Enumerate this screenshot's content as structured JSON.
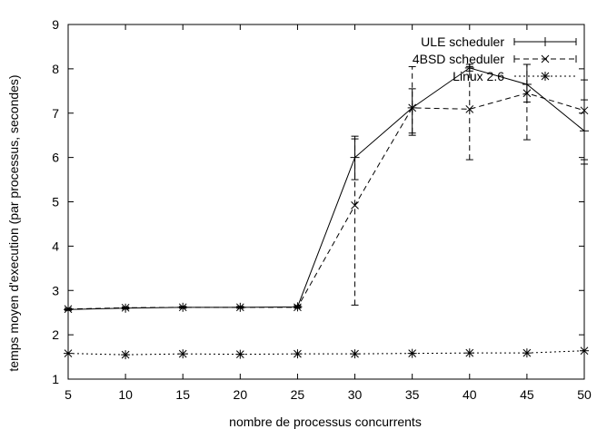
{
  "chart_data": {
    "type": "line",
    "xlabel": "nombre de processus concurrents",
    "ylabel": "temps moyen d'execution (par processus, secondes)",
    "xlim": [
      5,
      50
    ],
    "ylim": [
      1,
      9
    ],
    "xticks": [
      5,
      10,
      15,
      20,
      25,
      30,
      35,
      40,
      45,
      50
    ],
    "yticks": [
      1,
      2,
      3,
      4,
      5,
      6,
      7,
      8,
      9
    ],
    "grid": false,
    "legend_position": "top-right",
    "x": [
      5,
      10,
      15,
      20,
      25,
      30,
      35,
      40,
      45,
      50
    ],
    "series": [
      {
        "name": "ULE scheduler",
        "style": "solid",
        "marker": "plus",
        "values": [
          2.57,
          2.6,
          2.62,
          2.62,
          2.63,
          6.0,
          7.12,
          8.02,
          7.65,
          6.6
        ],
        "errors": [
          [
            2.55,
            2.59
          ],
          [
            2.58,
            2.62
          ],
          [
            2.6,
            2.64
          ],
          [
            2.6,
            2.64
          ],
          [
            2.61,
            2.66
          ],
          [
            5.5,
            6.48
          ],
          [
            6.5,
            7.55
          ],
          [
            7.95,
            8.1
          ],
          [
            7.25,
            8.1
          ],
          [
            5.95,
            7.75
          ]
        ]
      },
      {
        "name": "4BSD scheduler",
        "style": "dashed",
        "marker": "x",
        "values": [
          2.58,
          2.61,
          2.62,
          2.62,
          2.62,
          4.92,
          7.12,
          7.09,
          7.45,
          7.06
        ],
        "errors": [
          [
            2.56,
            2.6
          ],
          [
            2.59,
            2.63
          ],
          [
            2.6,
            2.64
          ],
          [
            2.6,
            2.64
          ],
          [
            2.6,
            2.64
          ],
          [
            2.67,
            6.42
          ],
          [
            6.55,
            8.05
          ],
          [
            5.95,
            8.05
          ],
          [
            6.4,
            8.1
          ],
          [
            5.85,
            7.3
          ]
        ]
      },
      {
        "name": "Linux 2.6",
        "style": "dotted",
        "marker": "star",
        "values": [
          1.58,
          1.55,
          1.57,
          1.56,
          1.57,
          1.57,
          1.58,
          1.59,
          1.59,
          1.64
        ],
        "errors": null
      }
    ],
    "colors": {
      "lines": "#000000",
      "background": "#ffffff"
    }
  }
}
